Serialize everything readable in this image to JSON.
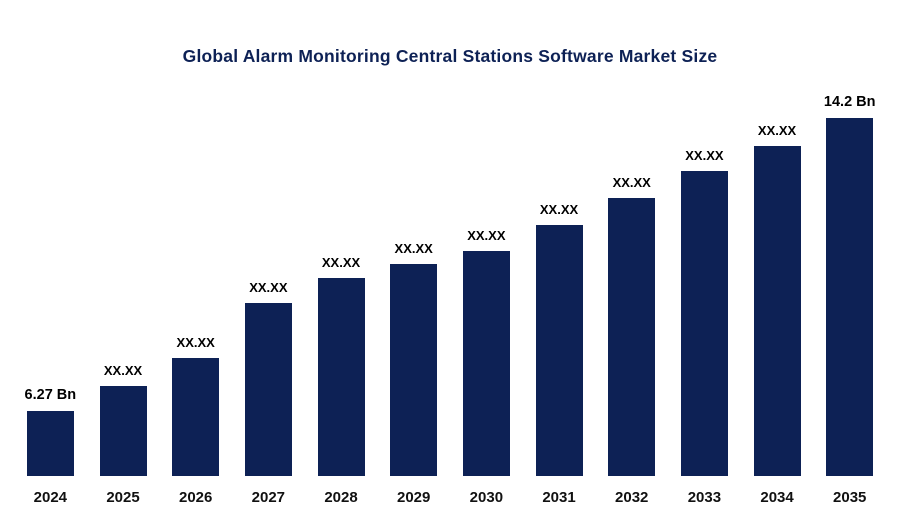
{
  "chart_data": {
    "type": "bar",
    "title": "Global Alarm Monitoring Central Stations Software Market Size",
    "categories": [
      "2024",
      "2025",
      "2026",
      "2027",
      "2028",
      "2029",
      "2030",
      "2031",
      "2032",
      "2033",
      "2034",
      "2035"
    ],
    "values": [
      6.27,
      6.95,
      7.7,
      9.19,
      9.87,
      10.25,
      10.6,
      11.3,
      12.03,
      12.76,
      13.44,
      14.2
    ],
    "labels": [
      "6.27 Bn",
      "XX.XX",
      "XX.XX",
      "XX.XX",
      "XX.XX",
      "XX.XX",
      "XX.XX",
      "XX.XX",
      "XX.XX",
      "XX.XX",
      "XX.XX",
      "14.2 Bn"
    ],
    "unit": "Bn",
    "bar_color": "#0d2155",
    "title_color": "#0d2155",
    "label_color": "#000000",
    "ylim": [
      4.5,
      14.2
    ],
    "grid": false,
    "legend": false,
    "xlabel": "",
    "ylabel": ""
  }
}
